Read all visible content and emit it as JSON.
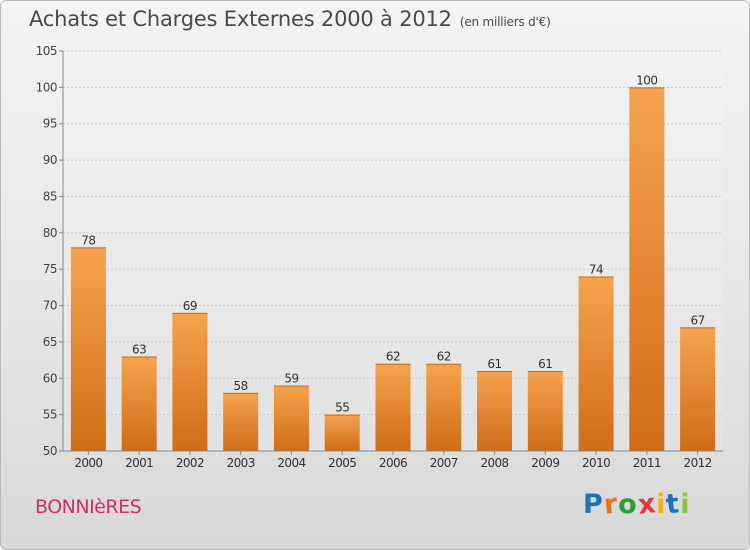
{
  "header": {
    "title": "Achats et Charges Externes 2000 à 2012",
    "unit": "(en milliers d'€)"
  },
  "footer": {
    "town": "BONNIèRES",
    "logo_text": "Proxiti",
    "logo_colors": [
      "#1b75bc",
      "#e8711c",
      "#2a9d3a",
      "#e53a3a",
      "#f2b21a",
      "#1b75bc",
      "#8cc63f"
    ]
  },
  "chart_data": {
    "type": "bar",
    "categories": [
      "2000",
      "2001",
      "2002",
      "2003",
      "2004",
      "2005",
      "2006",
      "2007",
      "2008",
      "2009",
      "2010",
      "2011",
      "2012"
    ],
    "values": [
      78,
      63,
      69,
      58,
      59,
      55,
      62,
      62,
      61,
      61,
      74,
      100,
      67
    ],
    "ylim": [
      50,
      105
    ],
    "yticks": [
      50,
      55,
      60,
      65,
      70,
      75,
      80,
      85,
      90,
      95,
      100,
      105
    ],
    "grid": true,
    "bar_color": "#f29a3f",
    "bar_color_dark": "#d66f14",
    "title": "Achats et Charges Externes 2000 à 2012",
    "xlabel": "",
    "ylabel": ""
  }
}
